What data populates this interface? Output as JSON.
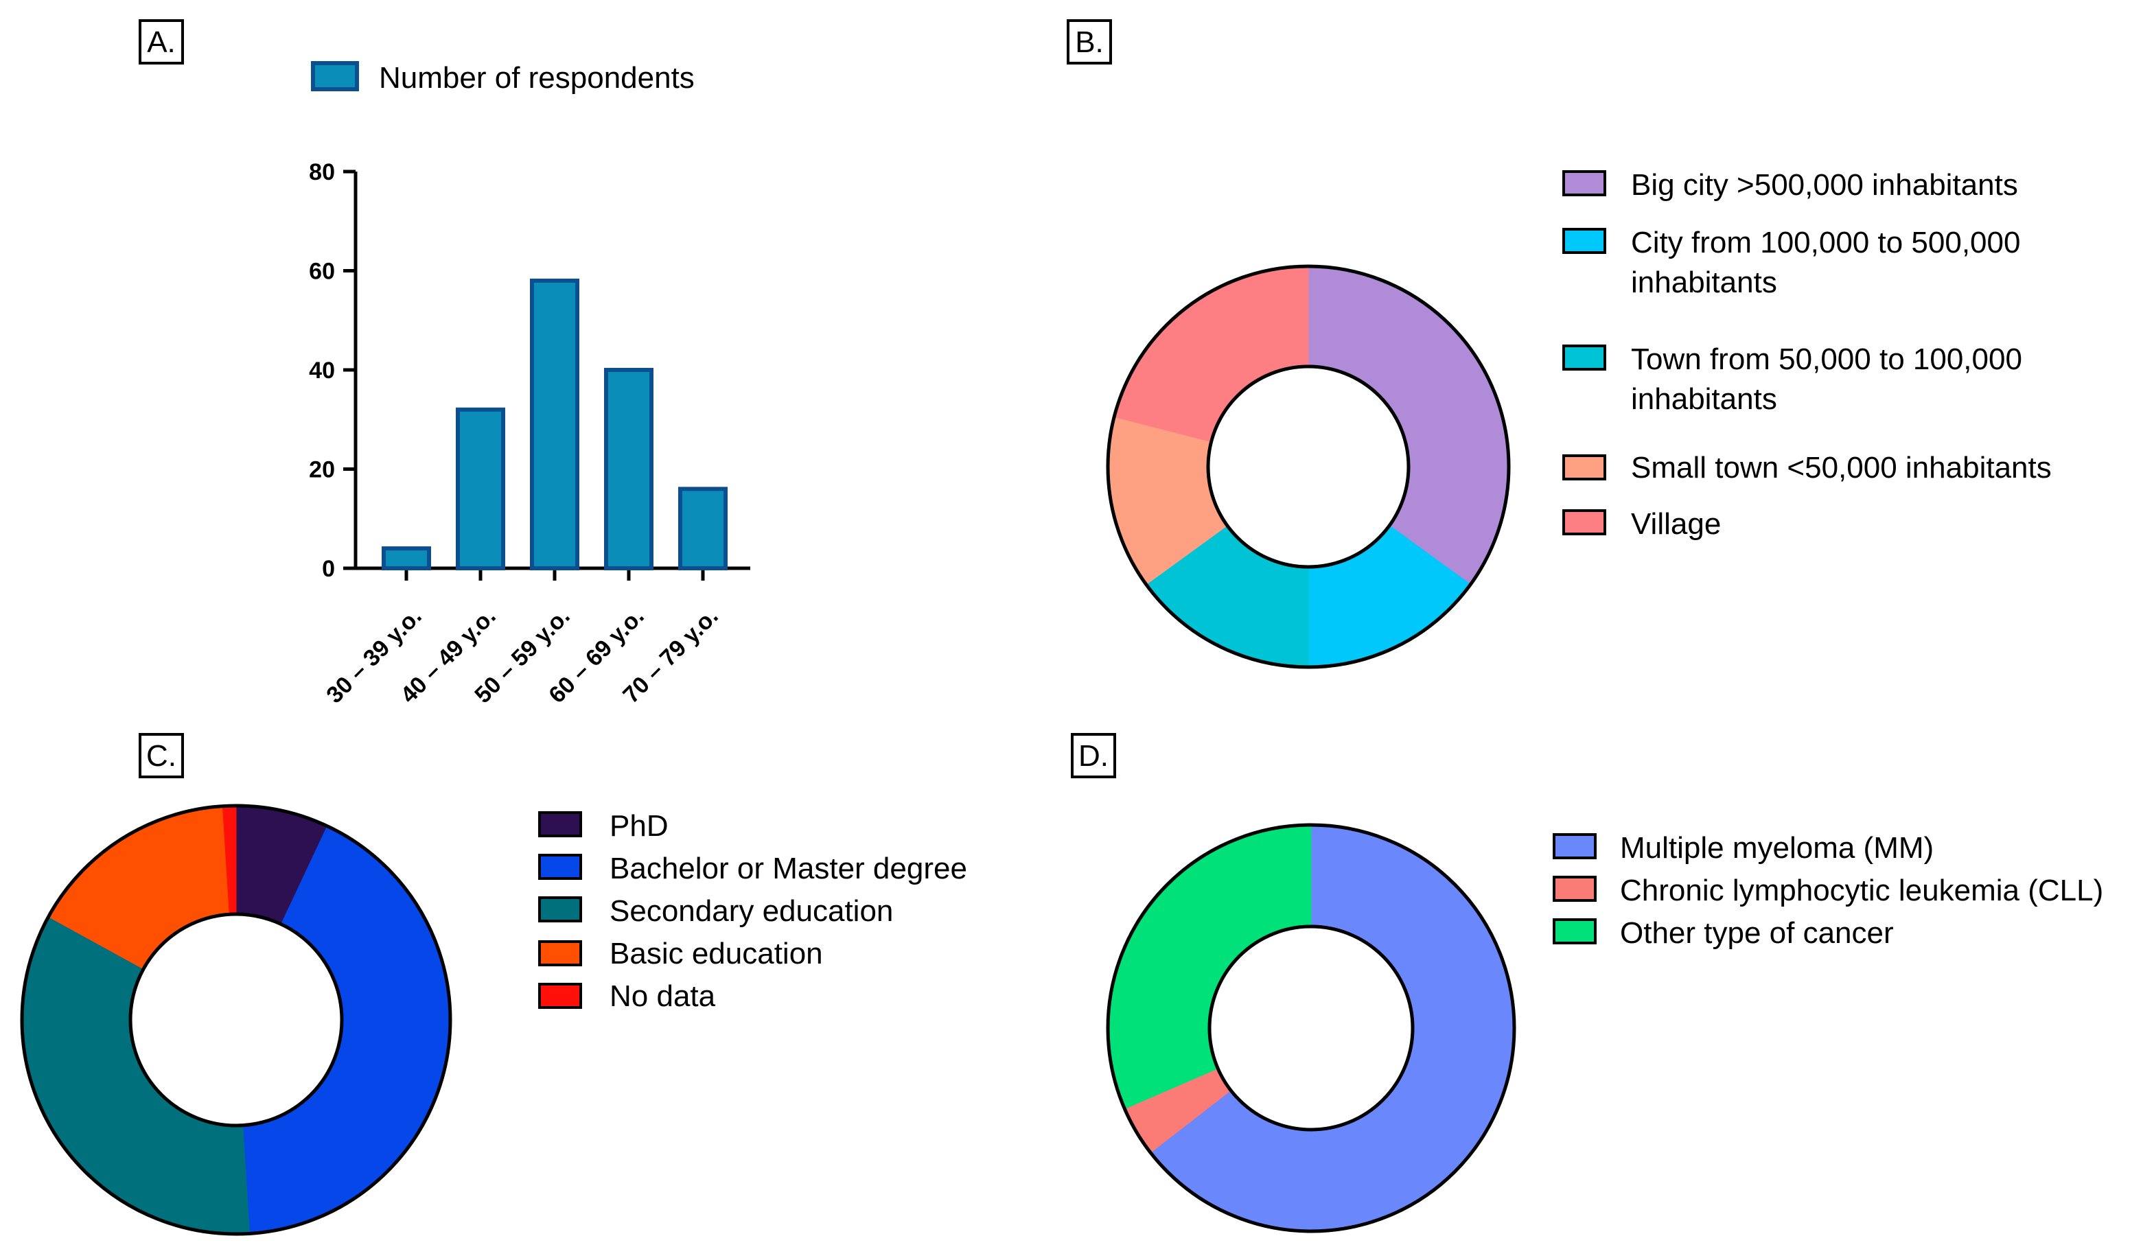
{
  "chart_data": [
    {
      "type": "bar",
      "panel_label": "A.",
      "legend": [
        "Number of respondents"
      ],
      "categories": [
        "30 – 39 y.o.",
        "40 – 49 y.o.",
        "50 – 59 y.o.",
        "60 – 69 y.o.",
        "70 – 79 y.o."
      ],
      "values": [
        4,
        32,
        58,
        40,
        16
      ],
      "yticks": [
        "0",
        "20",
        "40",
        "60",
        "80"
      ],
      "ylim": [
        0,
        80
      ],
      "grid": false,
      "color": "#0a8db8",
      "edge_color": "#0b4f8f"
    },
    {
      "type": "pie",
      "donut": true,
      "panel_label": "B.",
      "labels": [
        "Big city >500,000 inhabitants",
        "City from 100,000 to 500,000 inhabitants",
        "Town from 50,000 to 100,000 inhabitants",
        "Small town <50,000 inhabitants",
        "Village"
      ],
      "legend_lines": [
        [
          "Big city >500,000 inhabitants"
        ],
        [
          "City from 100,000 to 500,000",
          "inhabitants"
        ],
        [
          "Town from 50,000 to 100,000",
          "inhabitants"
        ],
        [
          "Small town <50,000 inhabitants"
        ],
        [
          "Village"
        ]
      ],
      "values": [
        35,
        15,
        15,
        14,
        21
      ],
      "colors": [
        "#af8bd8",
        "#00c8fb",
        "#00c4d6",
        "#fea082",
        "#fd7f83"
      ]
    },
    {
      "type": "pie",
      "donut": true,
      "panel_label": "C.",
      "labels": [
        "PhD",
        "Bachelor or Master degree",
        "Secondary education",
        "Basic education",
        "No data"
      ],
      "values": [
        7,
        42,
        34,
        16,
        1
      ],
      "colors": [
        "#2d1051",
        "#0647ea",
        "#00707c",
        "#fe5000",
        "#ff1008"
      ]
    },
    {
      "type": "pie",
      "donut": true,
      "panel_label": "D.",
      "labels": [
        "Multiple myeloma (MM)",
        "Chronic lymphocytic leukemia (CLL)",
        "Other type of cancer"
      ],
      "values": [
        64.5,
        4,
        31.5
      ],
      "colors": [
        "#6b87fc",
        "#fb7b77",
        "#00e179"
      ]
    }
  ]
}
